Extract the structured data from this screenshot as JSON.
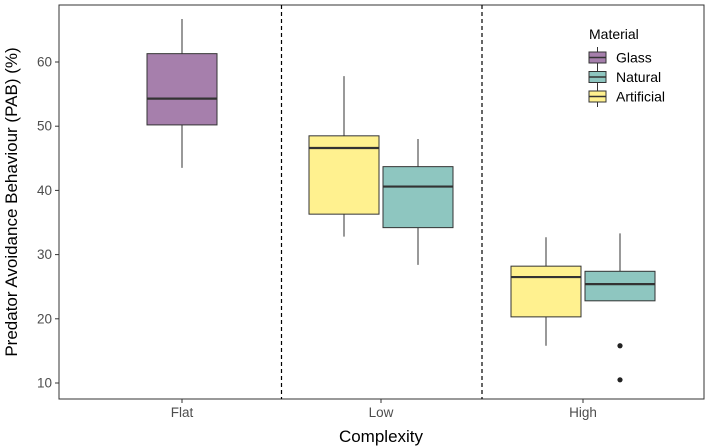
{
  "chart_data": {
    "type": "boxplot",
    "xlabel": "Complexity",
    "ylabel": "Predator Avoidance Behaviour (PAB) (%)",
    "categories": [
      "Flat",
      "Low",
      "High"
    ],
    "ylim": [
      7.5,
      68
    ],
    "yticks": [
      10,
      20,
      30,
      40,
      50,
      60
    ],
    "grid": false,
    "category_separators": "dashed",
    "legend": {
      "title": "Material",
      "placement": "top-right",
      "entries": [
        {
          "name": "Glass",
          "color": "#a67fac"
        },
        {
          "name": "Natural",
          "color": "#8ec6c0"
        },
        {
          "name": "Artificial",
          "color": "#fff18f"
        }
      ]
    },
    "boxes": [
      {
        "category": "Flat",
        "material": "Glass",
        "min": 43.5,
        "q1": 50.2,
        "median": 54.3,
        "q3": 61.3,
        "max": 66.7,
        "outliers": []
      },
      {
        "category": "Low",
        "material": "Artificial",
        "min": 32.8,
        "q1": 36.3,
        "median": 46.6,
        "q3": 48.5,
        "max": 57.8,
        "outliers": []
      },
      {
        "category": "Low",
        "material": "Natural",
        "min": 28.4,
        "q1": 34.2,
        "median": 40.6,
        "q3": 43.7,
        "max": 48.0,
        "outliers": []
      },
      {
        "category": "High",
        "material": "Artificial",
        "min": 15.8,
        "q1": 20.3,
        "median": 26.5,
        "q3": 28.2,
        "max": 32.7,
        "outliers": []
      },
      {
        "category": "High",
        "material": "Natural",
        "min": 22.8,
        "q1": 22.8,
        "median": 25.4,
        "q3": 27.4,
        "max": 33.3,
        "outliers": [
          15.8,
          10.5
        ]
      }
    ]
  }
}
